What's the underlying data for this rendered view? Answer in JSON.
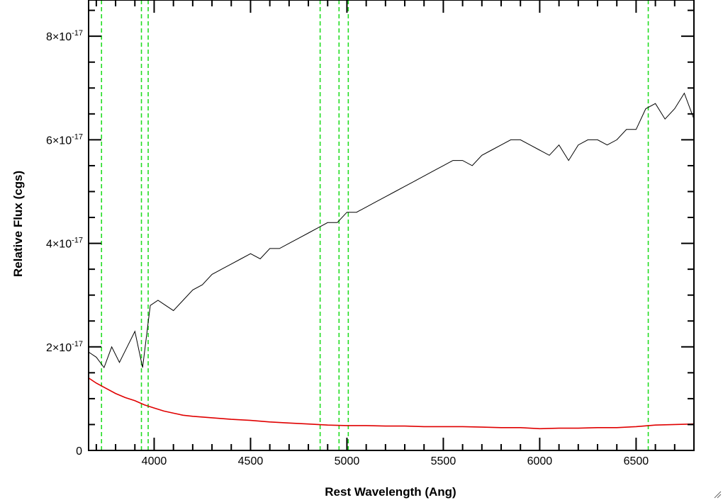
{
  "chart_data": {
    "type": "line",
    "xlabel": "Rest Wavelength (Ang)",
    "ylabel": "Relative Flux (cgs)",
    "xlim": [
      3660,
      6800
    ],
    "ylim": [
      0,
      8.7e-17
    ],
    "x_ticks": [
      {
        "value": 4000,
        "label": "4000"
      },
      {
        "value": 4500,
        "label": "4500"
      },
      {
        "value": 5000,
        "label": "5000"
      },
      {
        "value": 5500,
        "label": "5500"
      },
      {
        "value": 6000,
        "label": "6000"
      },
      {
        "value": 6500,
        "label": "6500"
      }
    ],
    "y_ticks": [
      {
        "value": 0,
        "mantissa": "0",
        "exponent": ""
      },
      {
        "value": 2e-17,
        "mantissa": "2×10",
        "exponent": "-17"
      },
      {
        "value": 4e-17,
        "mantissa": "4×10",
        "exponent": "-17"
      },
      {
        "value": 6e-17,
        "mantissa": "6×10",
        "exponent": "-17"
      },
      {
        "value": 8e-17,
        "mantissa": "8×10",
        "exponent": "-17"
      }
    ],
    "vertical_lines": [
      3727,
      3934,
      3969,
      4861,
      4959,
      5007,
      6563
    ],
    "series": [
      {
        "color": "#000000",
        "x": [
          3660,
          3700,
          3740,
          3780,
          3820,
          3860,
          3900,
          3940,
          3980,
          4020,
          4060,
          4100,
          4150,
          4200,
          4250,
          4300,
          4350,
          4400,
          4450,
          4500,
          4550,
          4600,
          4650,
          4700,
          4750,
          4800,
          4850,
          4900,
          4950,
          5000,
          5050,
          5100,
          5150,
          5200,
          5250,
          5300,
          5350,
          5400,
          5450,
          5500,
          5550,
          5600,
          5650,
          5700,
          5750,
          5800,
          5850,
          5900,
          5950,
          6000,
          6050,
          6100,
          6150,
          6200,
          6250,
          6300,
          6350,
          6400,
          6450,
          6500,
          6550,
          6600,
          6650,
          6700,
          6750,
          6800
        ],
        "values": [
          1.9e-17,
          1.8e-17,
          1.6e-17,
          2e-17,
          1.7e-17,
          2e-17,
          2.3e-17,
          1.6e-17,
          2.8e-17,
          2.9e-17,
          2.8e-17,
          2.7e-17,
          2.9e-17,
          3.1e-17,
          3.2e-17,
          3.4e-17,
          3.5e-17,
          3.6e-17,
          3.7e-17,
          3.8e-17,
          3.7e-17,
          3.9e-17,
          3.9e-17,
          4e-17,
          4.1e-17,
          4.2e-17,
          4.3e-17,
          4.4e-17,
          4.4e-17,
          4.6e-17,
          4.6e-17,
          4.7e-17,
          4.8e-17,
          4.9e-17,
          5e-17,
          5.1e-17,
          5.2e-17,
          5.3e-17,
          5.4e-17,
          5.5e-17,
          5.6e-17,
          5.6e-17,
          5.5e-17,
          5.7e-17,
          5.8e-17,
          5.9e-17,
          6e-17,
          6e-17,
          5.9e-17,
          5.8e-17,
          5.7e-17,
          5.9e-17,
          5.6e-17,
          5.9e-17,
          6e-17,
          6e-17,
          5.9e-17,
          6e-17,
          6.2e-17,
          6.2e-17,
          6.6e-17,
          6.7e-17,
          6.4e-17,
          6.6e-17,
          6.9e-17,
          6.4e-17
        ]
      },
      {
        "color": "#e00000",
        "x": [
          3660,
          3700,
          3750,
          3800,
          3850,
          3900,
          3950,
          4000,
          4050,
          4100,
          4150,
          4200,
          4300,
          4400,
          4500,
          4600,
          4700,
          4800,
          4900,
          5000,
          5100,
          5200,
          5300,
          5400,
          5500,
          5600,
          5700,
          5800,
          5900,
          6000,
          6100,
          6200,
          6300,
          6400,
          6500,
          6600,
          6700,
          6800
        ],
        "values": [
          1.4e-17,
          1.3e-17,
          1.2e-17,
          1.1e-17,
          1.02e-17,
          9.6e-18,
          8.8e-18,
          8.2e-18,
          7.6e-18,
          7.2e-18,
          6.8e-18,
          6.6e-18,
          6.3e-18,
          6e-18,
          5.8e-18,
          5.5e-18,
          5.3e-18,
          5.1e-18,
          4.9e-18,
          4.8e-18,
          4.8e-18,
          4.7e-18,
          4.7e-18,
          4.6e-18,
          4.6e-18,
          4.6e-18,
          4.5e-18,
          4.4e-18,
          4.4e-18,
          4.2e-18,
          4.3e-18,
          4.3e-18,
          4.4e-18,
          4.4e-18,
          4.6e-18,
          4.9e-18,
          5e-18,
          5.1e-18
        ]
      }
    ]
  }
}
